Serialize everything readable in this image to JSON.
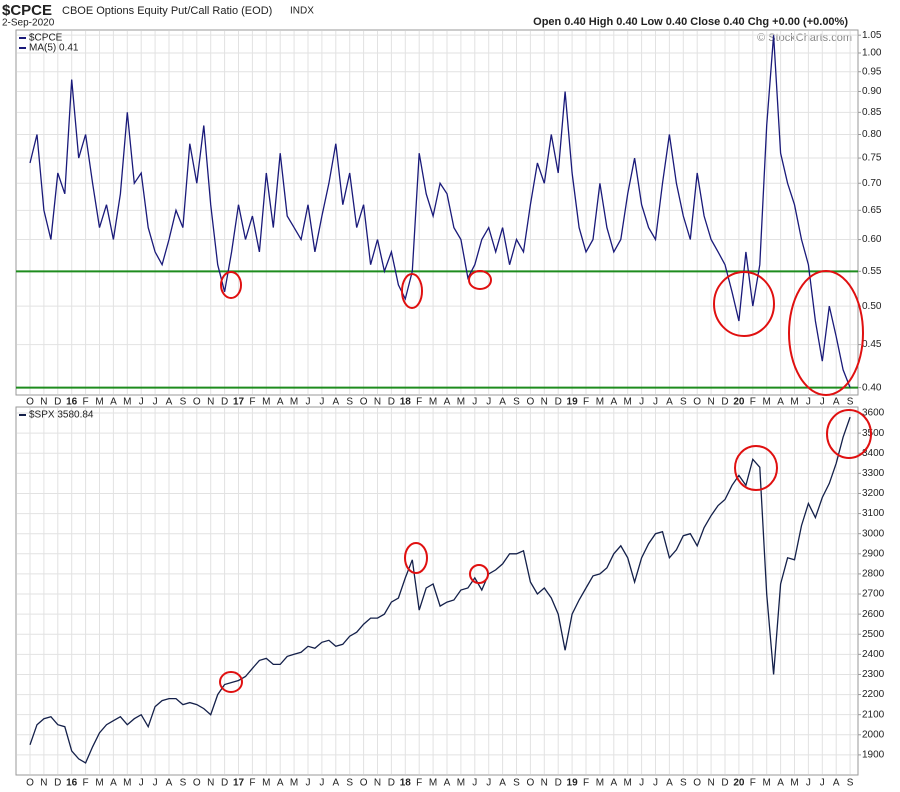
{
  "header": {
    "symbol": "$CPCE",
    "name": "CBOE Options Equity Put/Call Ratio (EOD)",
    "exchange": "INDX",
    "date": "2-Sep-2020",
    "quote": "Open 0.40  High 0.40  Low 0.40  Close 0.40  Chg +0.00 (+0.00%)",
    "credit": "© StockCharts.com"
  },
  "chart_data": [
    {
      "type": "line",
      "log": true,
      "grid": true,
      "indicator": "MA(5) 0.41",
      "categories": [
        "O",
        null,
        "N",
        null,
        "D",
        null,
        "16",
        null,
        "F",
        null,
        "M",
        null,
        "A",
        null,
        "M",
        null,
        "J",
        null,
        "J",
        null,
        "A",
        null,
        "S",
        null,
        "O",
        null,
        "N",
        null,
        "D",
        null,
        "17",
        null,
        "F",
        null,
        "M",
        null,
        "A",
        null,
        "M",
        null,
        "J",
        null,
        "J",
        null,
        "A",
        null,
        "S",
        null,
        "O",
        null,
        "N",
        null,
        "D",
        null,
        "18",
        null,
        "F",
        null,
        "M",
        null,
        "A",
        null,
        "M",
        null,
        "J",
        null,
        "J",
        null,
        "A",
        null,
        "S",
        null,
        "O",
        null,
        "N",
        null,
        "D",
        null,
        "19",
        null,
        "F",
        null,
        "M",
        null,
        "A",
        null,
        "M",
        null,
        "J",
        null,
        "J",
        null,
        "A",
        null,
        "S",
        null,
        "O",
        null,
        "N",
        null,
        "D",
        null,
        "20",
        null,
        "F",
        null,
        "M",
        null,
        "A",
        null,
        "M",
        null,
        "J",
        null,
        "J",
        null,
        "A",
        null,
        "S"
      ],
      "series": [
        {
          "name": "$CPCE",
          "color": "#1a1a7a",
          "values": [
            0.74,
            0.8,
            0.65,
            0.6,
            0.72,
            0.68,
            0.93,
            0.75,
            0.8,
            0.7,
            0.62,
            0.66,
            0.6,
            0.68,
            0.85,
            0.7,
            0.72,
            0.62,
            0.58,
            0.56,
            0.6,
            0.65,
            0.62,
            0.78,
            0.7,
            0.82,
            0.66,
            0.56,
            0.52,
            0.58,
            0.66,
            0.6,
            0.64,
            0.58,
            0.72,
            0.62,
            0.76,
            0.64,
            0.62,
            0.6,
            0.66,
            0.58,
            0.64,
            0.7,
            0.78,
            0.66,
            0.72,
            0.62,
            0.66,
            0.56,
            0.6,
            0.55,
            0.58,
            0.53,
            0.51,
            0.55,
            0.76,
            0.68,
            0.64,
            0.7,
            0.68,
            0.62,
            0.6,
            0.54,
            0.56,
            0.6,
            0.62,
            0.58,
            0.62,
            0.56,
            0.6,
            0.58,
            0.66,
            0.74,
            0.7,
            0.8,
            0.72,
            0.9,
            0.72,
            0.62,
            0.58,
            0.6,
            0.7,
            0.62,
            0.58,
            0.6,
            0.68,
            0.75,
            0.66,
            0.62,
            0.6,
            0.7,
            0.8,
            0.7,
            0.64,
            0.6,
            0.72,
            0.64,
            0.6,
            0.58,
            0.56,
            0.52,
            0.48,
            0.58,
            0.5,
            0.56,
            0.82,
            1.05,
            0.76,
            0.7,
            0.66,
            0.6,
            0.56,
            0.48,
            0.43,
            0.5,
            0.46,
            0.42,
            0.4
          ]
        }
      ],
      "hlines": {
        "values": [
          0.55,
          0.4
        ],
        "color": "#1e8c1e"
      },
      "ylim": [
        0.392,
        1.065
      ],
      "yticks": [
        {
          "value": 0.4,
          "label": "0.40"
        },
        0.45,
        {
          "value": 0.5,
          "label": "0.50"
        },
        0.55,
        {
          "value": 0.6,
          "label": "0.60"
        },
        0.65,
        {
          "value": 0.7,
          "label": "0.70"
        },
        0.75,
        {
          "value": 0.8,
          "label": "0.80"
        },
        0.85,
        {
          "value": 0.9,
          "label": "0.90"
        },
        0.95,
        {
          "value": 1,
          "label": "1.00"
        },
        1.05
      ]
    },
    {
      "type": "line",
      "log": false,
      "grid": true,
      "categories": [
        "O",
        null,
        "N",
        null,
        "D",
        null,
        "16",
        null,
        "F",
        null,
        "M",
        null,
        "A",
        null,
        "M",
        null,
        "J",
        null,
        "J",
        null,
        "A",
        null,
        "S",
        null,
        "O",
        null,
        "N",
        null,
        "D",
        null,
        "17",
        null,
        "F",
        null,
        "M",
        null,
        "A",
        null,
        "M",
        null,
        "J",
        null,
        "J",
        null,
        "A",
        null,
        "S",
        null,
        "O",
        null,
        "N",
        null,
        "D",
        null,
        "18",
        null,
        "F",
        null,
        "M",
        null,
        "A",
        null,
        "M",
        null,
        "J",
        null,
        "J",
        null,
        "A",
        null,
        "S",
        null,
        "O",
        null,
        "N",
        null,
        "D",
        null,
        "19",
        null,
        "F",
        null,
        "M",
        null,
        "A",
        null,
        "M",
        null,
        "J",
        null,
        "J",
        null,
        "A",
        null,
        "S",
        null,
        "O",
        null,
        "N",
        null,
        "D",
        null,
        "20",
        null,
        "F",
        null,
        "M",
        null,
        "A",
        null,
        "M",
        null,
        "J",
        null,
        "J",
        null,
        "A",
        null,
        "S"
      ],
      "series": [
        {
          "name": "$SPX 3580.84",
          "color": "#14204a",
          "values": [
            1950,
            2050,
            2080,
            2090,
            2050,
            2040,
            1920,
            1880,
            1860,
            1940,
            2010,
            2050,
            2070,
            2090,
            2050,
            2080,
            2100,
            2040,
            2140,
            2170,
            2180,
            2180,
            2150,
            2160,
            2150,
            2130,
            2100,
            2200,
            2250,
            2260,
            2270,
            2290,
            2330,
            2370,
            2380,
            2350,
            2350,
            2390,
            2400,
            2410,
            2440,
            2430,
            2460,
            2470,
            2440,
            2450,
            2490,
            2510,
            2550,
            2580,
            2580,
            2600,
            2660,
            2680,
            2780,
            2870,
            2620,
            2730,
            2750,
            2640,
            2660,
            2670,
            2720,
            2730,
            2780,
            2720,
            2800,
            2820,
            2850,
            2900,
            2900,
            2915,
            2760,
            2700,
            2730,
            2680,
            2600,
            2420,
            2600,
            2670,
            2730,
            2790,
            2800,
            2830,
            2900,
            2940,
            2880,
            2760,
            2880,
            2950,
            3000,
            3010,
            2880,
            2920,
            2990,
            3000,
            2940,
            3030,
            3090,
            3140,
            3170,
            3240,
            3290,
            3240,
            3370,
            3330,
            2700,
            2300,
            2750,
            2880,
            2870,
            3040,
            3150,
            3080,
            3180,
            3250,
            3350,
            3480,
            3580
          ]
        }
      ],
      "ylim": [
        1800,
        3630
      ],
      "yticks": [
        1900,
        2000,
        2100,
        2200,
        2300,
        2400,
        2500,
        2600,
        2700,
        2800,
        2900,
        3000,
        3100,
        3200,
        3300,
        3400,
        3500,
        3600
      ]
    }
  ]
}
